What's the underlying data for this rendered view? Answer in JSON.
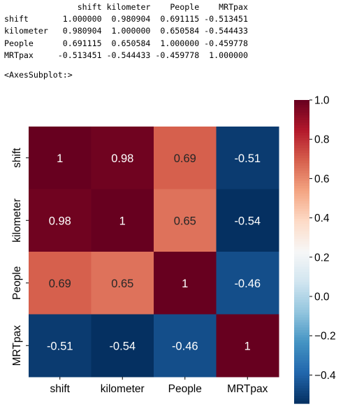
{
  "dataframe_output": {
    "columns": [
      "shift",
      "kilometer",
      "People",
      "MRTpax"
    ],
    "rows": [
      {
        "index": "shift",
        "values": [
          "1.000000",
          "0.980904",
          "0.691115",
          "-0.513451"
        ]
      },
      {
        "index": "kilometer",
        "values": [
          "0.980904",
          "1.000000",
          "0.650584",
          "-0.544433"
        ]
      },
      {
        "index": "People",
        "values": [
          "0.691115",
          "0.650584",
          "1.000000",
          "-0.459778"
        ]
      },
      {
        "index": "MRTpax",
        "values": [
          "-0.513451",
          "-0.544433",
          "-0.459778",
          "1.000000"
        ]
      }
    ]
  },
  "axes_repr": "<AxesSubplot:>",
  "chart_data": {
    "type": "heatmap",
    "x_categories": [
      "shift",
      "kilometer",
      "People",
      "MRTpax"
    ],
    "y_categories": [
      "shift",
      "kilometer",
      "People",
      "MRTpax"
    ],
    "values": [
      [
        1.0,
        0.980904,
        0.691115,
        -0.513451
      ],
      [
        0.980904,
        1.0,
        0.650584,
        -0.544433
      ],
      [
        0.691115,
        0.650584,
        1.0,
        -0.459778
      ],
      [
        -0.513451,
        -0.544433,
        -0.459778,
        1.0
      ]
    ],
    "annotations": [
      [
        "1",
        "0.98",
        "0.69",
        "-0.51"
      ],
      [
        "0.98",
        "1",
        "0.65",
        "-0.54"
      ],
      [
        "0.69",
        "0.65",
        "1",
        "-0.46"
      ],
      [
        "-0.51",
        "-0.54",
        "-0.46",
        "1"
      ]
    ],
    "colormap": "RdBu_r",
    "vmin": -0.544433,
    "vmax": 1.0,
    "colorbar_ticks": [
      1.0,
      0.8,
      0.6,
      0.4,
      0.2,
      0.0,
      -0.2,
      -0.4
    ],
    "colorbar_tick_labels": [
      "1.0",
      "0.8",
      "0.6",
      "0.4",
      "0.2",
      "0.0",
      "−0.2",
      "−0.4"
    ],
    "title": "",
    "xlabel": "",
    "ylabel": ""
  }
}
